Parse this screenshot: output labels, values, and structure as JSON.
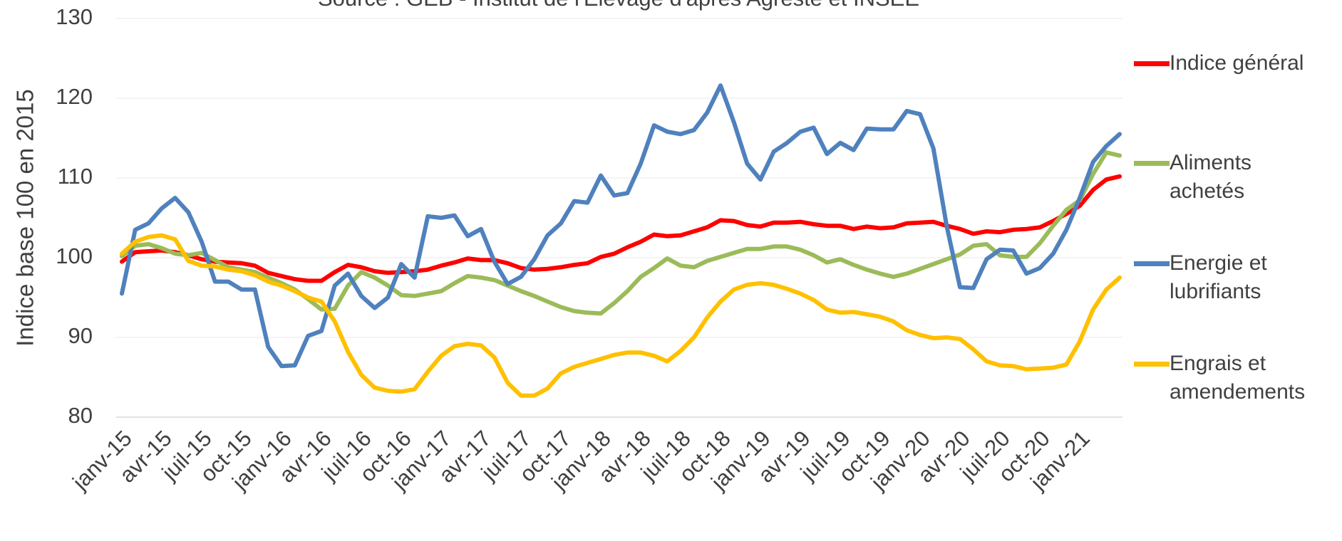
{
  "chart_data": {
    "type": "line",
    "subtitle": "Source : GEB - Institut de l'Elevage d'après Agreste et INSEE",
    "y_label": "Indice base 100 en 2015",
    "categories": [
      "janv-15",
      null,
      null,
      "avr-15",
      null,
      null,
      "juil-15",
      null,
      null,
      "oct-15",
      null,
      null,
      "janv-16",
      null,
      null,
      "avr-16",
      null,
      null,
      "juil-16",
      null,
      null,
      "oct-16",
      null,
      null,
      "janv-17",
      null,
      null,
      "avr-17",
      null,
      null,
      "juil-17",
      null,
      null,
      "oct-17",
      null,
      null,
      "janv-18",
      null,
      null,
      "avr-18",
      null,
      null,
      "juil-18",
      null,
      null,
      "oct-18",
      null,
      null,
      "janv-19",
      null,
      null,
      "avr-19",
      null,
      null,
      "juil-19",
      null,
      null,
      "oct-19",
      null,
      null,
      "janv-20",
      null,
      null,
      "avr-20",
      null,
      null,
      "juil-20",
      null,
      null,
      "oct-20",
      null,
      null,
      "janv-21",
      null,
      null,
      null
    ],
    "ylim": [
      80,
      130
    ],
    "yticks": [
      80,
      90,
      100,
      110,
      120,
      130
    ],
    "grid": true,
    "series": [
      {
        "name": "Indice général",
        "color": "#ff0000",
        "values": [
          99.5,
          100.7,
          100.8,
          100.9,
          100.7,
          100.3,
          99.8,
          99.5,
          99.4,
          99.3,
          99.0,
          98.1,
          97.7,
          97.3,
          97.1,
          97.1,
          98.2,
          99.1,
          98.8,
          98.3,
          98.1,
          98.2,
          98.3,
          98.5,
          99.0,
          99.4,
          99.9,
          99.7,
          99.7,
          99.3,
          98.7,
          98.5,
          98.6,
          98.8,
          99.1,
          99.3,
          100.1,
          100.5,
          101.3,
          102.0,
          102.9,
          102.7,
          102.8,
          103.3,
          103.8,
          104.7,
          104.6,
          104.1,
          103.9,
          104.4,
          104.4,
          104.5,
          104.2,
          104.0,
          104.0,
          103.6,
          103.9,
          103.7,
          103.8,
          104.3,
          104.4,
          104.5,
          104.0,
          103.6,
          103.0,
          103.3,
          103.2,
          103.5,
          103.6,
          103.8,
          104.6,
          105.5,
          106.5,
          108.5,
          109.8,
          110.2
        ]
      },
      {
        "name": "Aliments achetés",
        "color": "#9bbb59",
        "values": [
          100.2,
          101.5,
          101.7,
          101.2,
          100.5,
          100.3,
          100.6,
          99.7,
          98.8,
          98.5,
          98.2,
          97.5,
          96.8,
          96.0,
          94.8,
          93.5,
          93.6,
          96.5,
          98.2,
          97.5,
          96.5,
          95.3,
          95.2,
          95.5,
          95.8,
          96.8,
          97.7,
          97.5,
          97.2,
          96.5,
          95.8,
          95.2,
          94.5,
          93.8,
          93.3,
          93.1,
          93.0,
          94.3,
          95.8,
          97.6,
          98.7,
          99.9,
          99.0,
          98.8,
          99.6,
          100.1,
          100.6,
          101.1,
          101.1,
          101.4,
          101.4,
          101.0,
          100.3,
          99.4,
          99.8,
          99.1,
          98.5,
          98.0,
          97.6,
          98.0,
          98.6,
          99.2,
          99.8,
          100.4,
          101.5,
          101.7,
          100.3,
          100.1,
          100.1,
          101.8,
          104.0,
          106.0,
          107.2,
          110.5,
          113.2,
          112.8
        ]
      },
      {
        "name": "Energie et lubrifiants",
        "color": "#4f81bd",
        "values": [
          95.5,
          103.5,
          104.3,
          106.2,
          107.5,
          105.7,
          102.0,
          97.0,
          97.0,
          96.0,
          96.0,
          88.8,
          86.4,
          86.5,
          90.2,
          90.8,
          96.5,
          98.0,
          95.2,
          93.7,
          95.0,
          99.2,
          97.5,
          105.2,
          105.0,
          105.3,
          102.7,
          103.6,
          99.5,
          96.7,
          97.6,
          99.8,
          102.8,
          104.3,
          107.1,
          106.9,
          110.3,
          107.8,
          108.1,
          111.8,
          116.6,
          115.8,
          115.5,
          116.0,
          118.2,
          121.6,
          117.0,
          111.8,
          109.8,
          113.3,
          114.4,
          115.8,
          116.3,
          113.0,
          114.4,
          113.5,
          116.2,
          116.1,
          116.1,
          118.4,
          118.0,
          113.7,
          104.0,
          96.3,
          96.2,
          99.8,
          101.0,
          100.9,
          98.0,
          98.7,
          100.5,
          103.5,
          107.5,
          112.0,
          114.0,
          115.5
        ]
      },
      {
        "name": "Engrais et amendements",
        "color": "#ffc000",
        "values": [
          100.5,
          102.0,
          102.6,
          102.8,
          102.3,
          99.6,
          99.0,
          98.9,
          98.5,
          98.3,
          97.8,
          97.0,
          96.5,
          95.8,
          95.0,
          94.5,
          92.0,
          88.2,
          85.3,
          83.7,
          83.3,
          83.2,
          83.5,
          85.7,
          87.7,
          88.9,
          89.2,
          89.0,
          87.5,
          84.3,
          82.7,
          82.7,
          83.6,
          85.5,
          86.3,
          86.8,
          87.3,
          87.8,
          88.1,
          88.1,
          87.7,
          87.0,
          88.3,
          90.0,
          92.5,
          94.5,
          96.0,
          96.6,
          96.8,
          96.6,
          96.1,
          95.5,
          94.7,
          93.5,
          93.1,
          93.2,
          92.9,
          92.6,
          92.0,
          90.9,
          90.3,
          89.9,
          90.0,
          89.8,
          88.5,
          87.0,
          86.5,
          86.4,
          86.0,
          86.1,
          86.2,
          86.6,
          89.5,
          93.5,
          96.0,
          97.5
        ]
      }
    ]
  }
}
